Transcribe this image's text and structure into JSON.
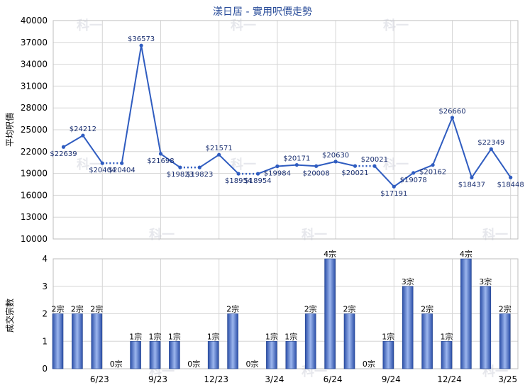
{
  "chart_data": [
    {
      "type": "line",
      "title": "漾日居 - 實用呎價走勢",
      "ylabel": "平均呎價",
      "ylim": [
        10000,
        40000
      ],
      "yticks": [
        10000,
        13000,
        16000,
        19000,
        22000,
        25000,
        28000,
        31000,
        34000,
        37000,
        40000
      ],
      "values": [
        22639,
        24212,
        20404,
        20404,
        36573,
        21698,
        19823,
        19823,
        21571,
        18954,
        18954,
        19984,
        20171,
        20008,
        20630,
        20021,
        20021,
        17191,
        19078,
        20162,
        26660,
        18437,
        22349,
        18448
      ],
      "labels": [
        "$22639",
        "$24212",
        "$20404",
        "$20404",
        "$36573",
        "$21698",
        "$19823",
        "$19823",
        "$21571",
        "$18954",
        "$18954",
        "$19984",
        "$20171",
        "$20008",
        "$20630",
        "$20021",
        "$20021",
        "$17191",
        "$19078",
        "$20162",
        "$26660",
        "$18437",
        "$22349",
        "$18448"
      ],
      "dotted_segments": [
        [
          2,
          3
        ],
        [
          6,
          7
        ],
        [
          9,
          10
        ],
        [
          15,
          16
        ]
      ],
      "grid": true
    },
    {
      "type": "bar",
      "ylabel": "成交宗數",
      "ylim": [
        0,
        4
      ],
      "yticks": [
        0,
        1,
        2,
        3,
        4
      ],
      "x_tick_labels": [
        {
          "index": 2,
          "label": "6/23"
        },
        {
          "index": 5,
          "label": "9/23"
        },
        {
          "index": 8,
          "label": "12/23"
        },
        {
          "index": 11,
          "label": "3/24"
        },
        {
          "index": 14,
          "label": "6/24"
        },
        {
          "index": 17,
          "label": "9/24"
        },
        {
          "index": 20,
          "label": "12/24"
        },
        {
          "index": 23,
          "label": "3/25"
        }
      ],
      "values": [
        2,
        2,
        2,
        0,
        1,
        1,
        1,
        0,
        1,
        2,
        0,
        1,
        1,
        2,
        4,
        2,
        0,
        1,
        3,
        2,
        1,
        4,
        3,
        2
      ],
      "labels": [
        "2宗",
        "2宗",
        "2宗",
        "0宗",
        "1宗",
        "1宗",
        "1宗",
        "0宗",
        "1宗",
        "2宗",
        "0宗",
        "1宗",
        "1宗",
        "2宗",
        "4宗",
        "2宗",
        "0宗",
        "1宗",
        "3宗",
        "2宗",
        "1宗",
        "4宗",
        "3宗",
        "2宗"
      ],
      "grid": true
    }
  ],
  "watermark": "科一",
  "colors": {
    "line": "#2f5cc0",
    "bar_dark": "#2b4fa8",
    "bar_light": "#9cb6ee",
    "grid": "#d6d6d6",
    "title": "#2a4d9a"
  }
}
